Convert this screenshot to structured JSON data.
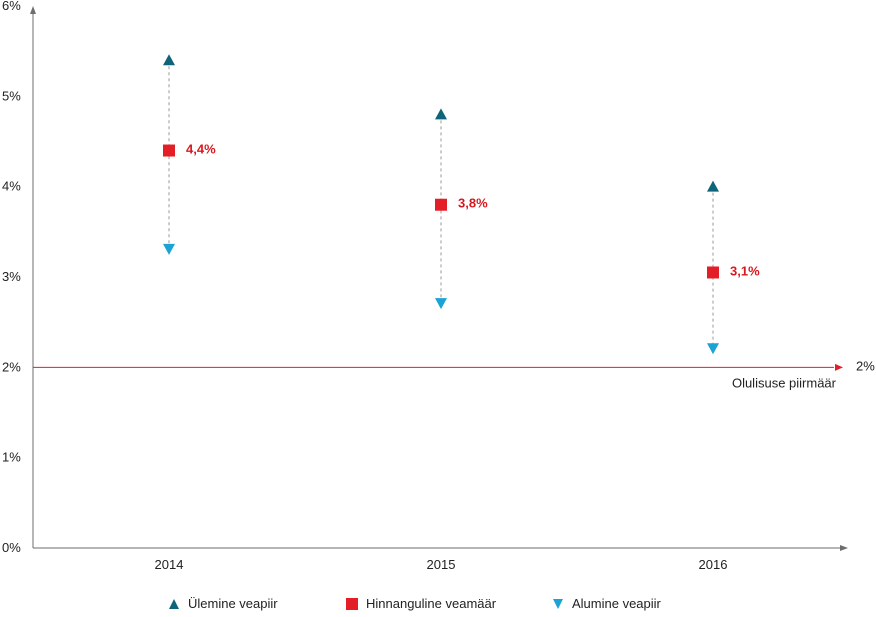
{
  "chart_data": {
    "type": "scatter",
    "categories": [
      "2014",
      "2015",
      "2016"
    ],
    "series": [
      {
        "name": "Ülemine veapiir",
        "values": [
          5.4,
          4.8,
          4.0
        ],
        "color": "#0e6579",
        "marker": "triangle-up"
      },
      {
        "name": "Hinnanguline veamäär",
        "values": [
          4.4,
          3.8,
          3.05
        ],
        "color": "#e41e26",
        "marker": "square"
      },
      {
        "name": "Alumine veapiir",
        "values": [
          3.3,
          2.7,
          2.2
        ],
        "color": "#1aa3d4",
        "marker": "triangle-down"
      }
    ],
    "data_labels": [
      "4,4%",
      "3,8%",
      "3,1%"
    ],
    "y_ticks": [
      "0%",
      "1%",
      "2%",
      "3%",
      "4%",
      "5%",
      "6%"
    ],
    "ylim": [
      0,
      6
    ],
    "threshold": {
      "value": 2,
      "label": "2%",
      "caption": "Olulisuse piirmäär",
      "color": "#e41e26"
    },
    "grid": false,
    "legend_position": "bottom"
  }
}
